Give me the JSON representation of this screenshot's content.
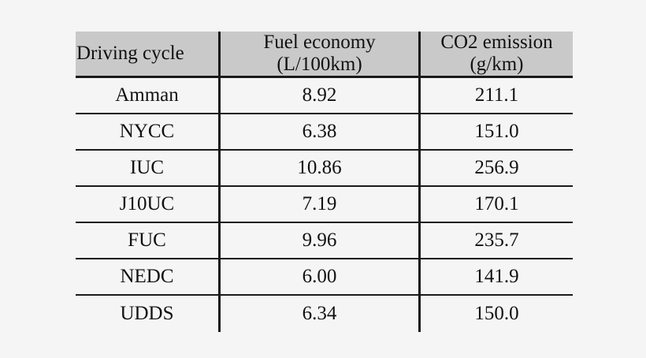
{
  "table": {
    "headers": [
      {
        "line1": "Driving cycle",
        "line2": ""
      },
      {
        "line1": "Fuel economy",
        "line2": "(L/100km)"
      },
      {
        "line1": "CO2 emission",
        "line2": "(g/km)"
      }
    ],
    "rows": [
      {
        "cycle": "Amman",
        "fuel_economy": "8.92",
        "co2_emission": "211.1"
      },
      {
        "cycle": "NYCC",
        "fuel_economy": "6.38",
        "co2_emission": "151.0"
      },
      {
        "cycle": "IUC",
        "fuel_economy": "10.86",
        "co2_emission": "256.9"
      },
      {
        "cycle": "J10UC",
        "fuel_economy": "7.19",
        "co2_emission": "170.1"
      },
      {
        "cycle": "FUC",
        "fuel_economy": "9.96",
        "co2_emission": "235.7"
      },
      {
        "cycle": "NEDC",
        "fuel_economy": "6.00",
        "co2_emission": "141.9"
      },
      {
        "cycle": "UDDS",
        "fuel_economy": "6.34",
        "co2_emission": "150.0"
      }
    ]
  },
  "colors": {
    "background": "#f5f5f5",
    "header_background": "#c9c9c9",
    "rule": "#1a1a1a",
    "text": "#111111"
  }
}
